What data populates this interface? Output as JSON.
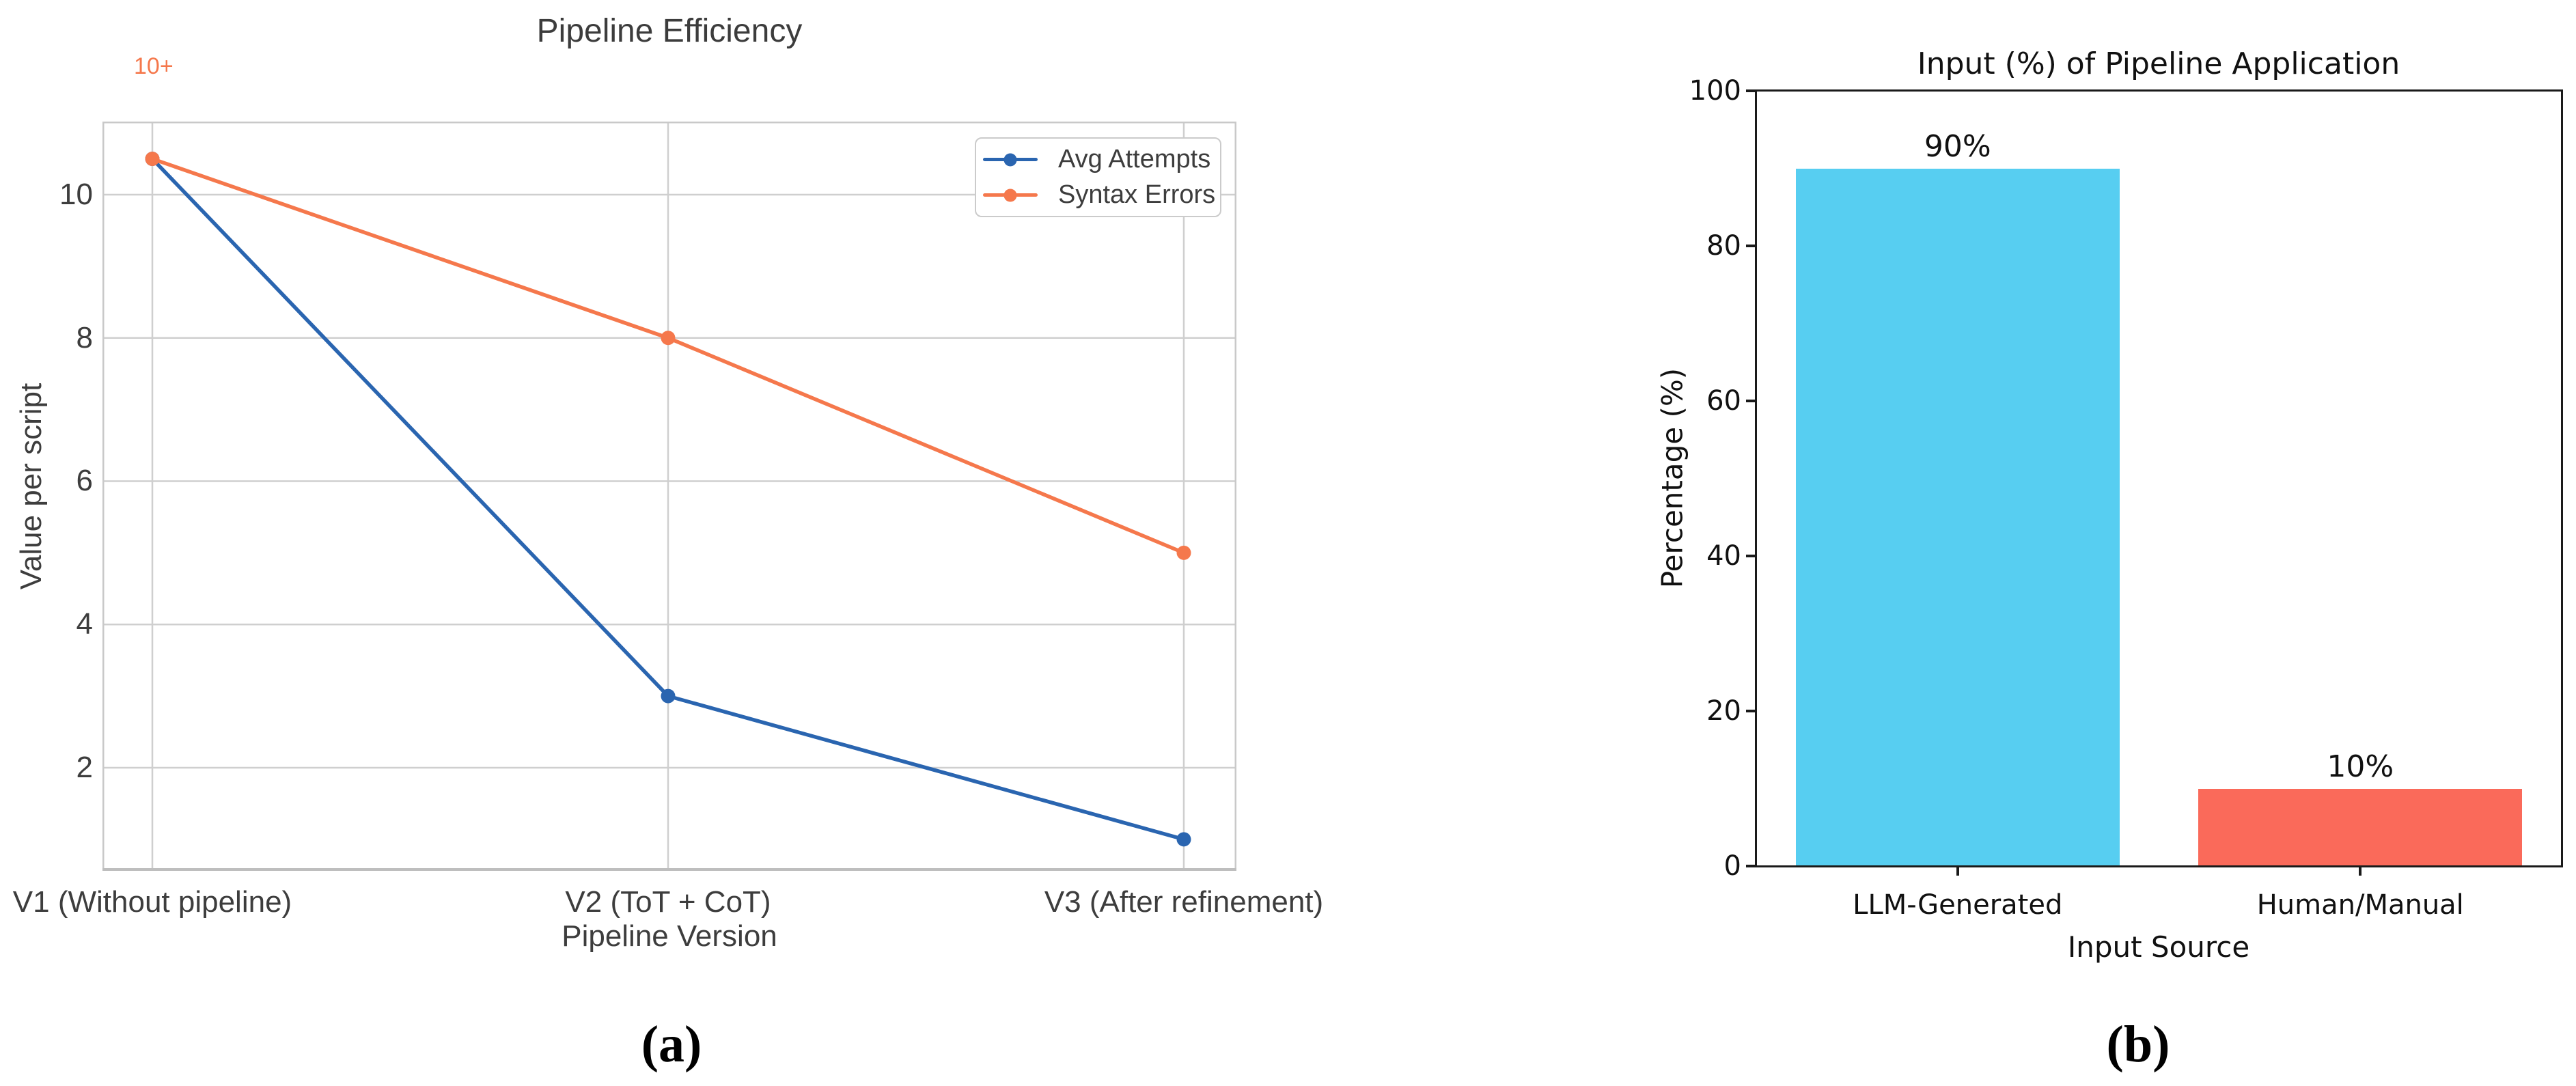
{
  "chart_data": [
    {
      "id": "a",
      "type": "line",
      "title": "Pipeline Efficiency",
      "xlabel": "Pipeline Version",
      "ylabel": "Value per script",
      "caption": "(a)",
      "categories": [
        "V1 (Without pipeline)",
        "V2 (ToT + CoT)",
        "V3 (After refinement)"
      ],
      "series": [
        {
          "name": "Avg Attempts",
          "color": "#2A65B0",
          "values": [
            10.5,
            3,
            1
          ]
        },
        {
          "name": "Syntax Errors",
          "color": "#F5784C",
          "values": [
            10.5,
            8,
            5
          ]
        }
      ],
      "yticks": [
        2,
        4,
        6,
        8,
        10
      ],
      "ylim": [
        0.56,
        11.02
      ],
      "annotation": {
        "text": "10+",
        "color": "#F5784C"
      },
      "legend_position": "upper right",
      "grid": true,
      "grid_color": "#CFCFCF"
    },
    {
      "id": "b",
      "type": "bar",
      "title": "Input (%) of Pipeline Application",
      "xlabel": "Input Source",
      "ylabel": "Percentage (%)",
      "caption": "(b)",
      "categories": [
        "LLM-Generated",
        "Human/Manual"
      ],
      "values": [
        90,
        10
      ],
      "bar_labels": [
        "90%",
        "10%"
      ],
      "bar_colors": [
        "#57CEF1",
        "#FA6A5A"
      ],
      "yticks": [
        0,
        20,
        40,
        60,
        80,
        100
      ],
      "ylim": [
        0,
        100
      ],
      "grid": false
    }
  ]
}
